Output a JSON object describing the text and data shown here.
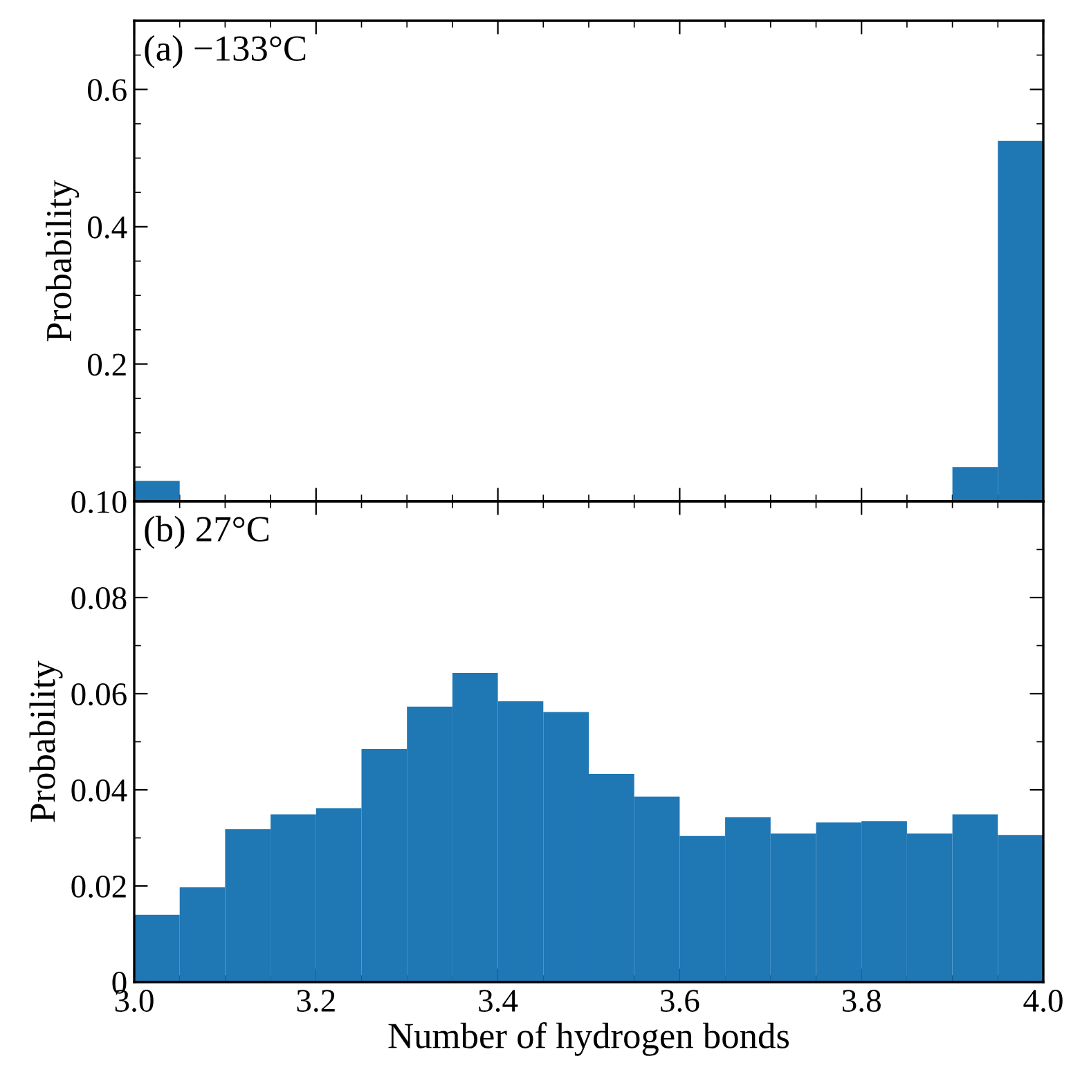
{
  "chart_data": [
    {
      "type": "histogram",
      "ylabel": "Probability",
      "annotations": [
        "(a) −133°C"
      ],
      "bins": [
        3.0,
        3.05,
        3.1,
        3.15,
        3.2,
        3.25,
        3.3,
        3.35,
        3.4,
        3.45,
        3.5,
        3.55,
        3.6,
        3.65,
        3.7,
        3.75,
        3.8,
        3.85,
        3.9,
        3.95,
        4.0
      ],
      "values": [
        0.03,
        0,
        0,
        0,
        0,
        0,
        0,
        0,
        0,
        0,
        0,
        0,
        0,
        0,
        0,
        0,
        0,
        0,
        0.05,
        0.525
      ],
      "color": "#1f77b4",
      "xlim": [
        3.0,
        4.0
      ],
      "ylim": [
        0,
        0.7
      ],
      "yticks": [
        0.2,
        0.4,
        0.6
      ],
      "tick_labels": "y",
      "grid": false,
      "legend": false
    },
    {
      "type": "histogram",
      "ylabel": "Probability",
      "xlabel": "Number of hydrogen bonds",
      "annotations": [
        "(b) 27°C"
      ],
      "bins": [
        3.0,
        3.05,
        3.1,
        3.15,
        3.2,
        3.25,
        3.3,
        3.35,
        3.4,
        3.45,
        3.5,
        3.55,
        3.6,
        3.65,
        3.7,
        3.75,
        3.8,
        3.85,
        3.9,
        3.95,
        4.0
      ],
      "values": [
        0.014,
        0.0197,
        0.0318,
        0.0349,
        0.0362,
        0.0485,
        0.0573,
        0.0643,
        0.0584,
        0.0562,
        0.0433,
        0.0386,
        0.0304,
        0.0343,
        0.0309,
        0.0332,
        0.0335,
        0.0309,
        0.0349,
        0.0306
      ],
      "color": "#1f77b4",
      "xlim": [
        3.0,
        4.0
      ],
      "xticks": [
        {
          "value": 3.0,
          "label": "3.0"
        },
        3.2,
        3.4,
        3.6,
        3.8,
        {
          "value": 4.0,
          "label": "4.0"
        }
      ],
      "ylim": [
        0,
        0.1
      ],
      "yticks": [
        {
          "value": 0,
          "label": "0"
        },
        0.02,
        0.04,
        0.06,
        0.08,
        {
          "value": 0.1,
          "label": "0.10"
        }
      ],
      "grid": false,
      "legend": false
    }
  ]
}
